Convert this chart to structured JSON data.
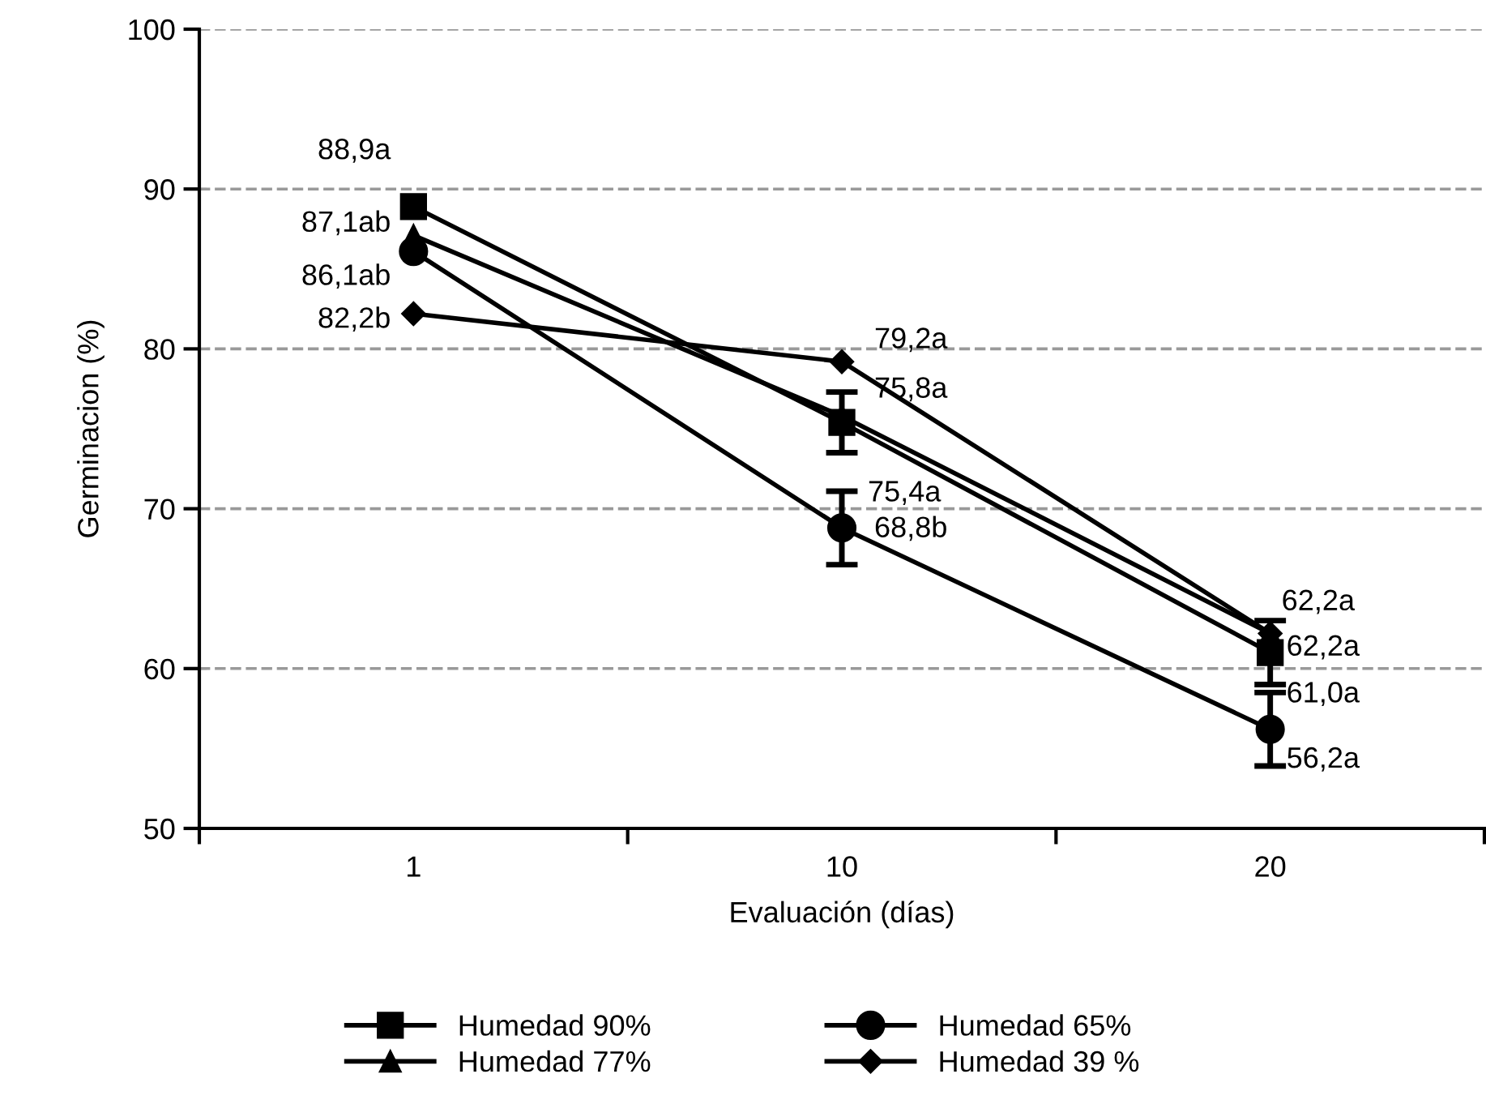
{
  "chart_data": {
    "type": "line",
    "xlabel": "Evaluación (días)",
    "ylabel": "Germinacion (%)",
    "categories": [
      "1",
      "10",
      "20"
    ],
    "ylim": [
      50,
      100
    ],
    "yticks": [
      50,
      60,
      70,
      80,
      90,
      100
    ],
    "grid": "y",
    "legend": "bottom",
    "line_style": "solid",
    "series": [
      {
        "name": "Humedad 90%",
        "color": "#000000",
        "marker": "square",
        "values": [
          88.9,
          75.4,
          61.0
        ],
        "errors": [
          null,
          1.9,
          2.0
        ],
        "value_labels": [
          "88,9a",
          "75,4a",
          "61,0a"
        ]
      },
      {
        "name": "Humedad 77%",
        "color": "#000000",
        "marker": "triangle",
        "values": [
          87.1,
          75.8,
          62.2
        ],
        "value_labels": [
          "87,1ab",
          "75,8a",
          "62,2a"
        ]
      },
      {
        "name": "Humedad 65%",
        "color": "#000000",
        "marker": "circle",
        "values": [
          86.1,
          68.8,
          56.2
        ],
        "errors": [
          null,
          2.3,
          2.3
        ],
        "value_labels": [
          "86,1ab",
          "68,8b",
          "56,2a"
        ]
      },
      {
        "name": "Humedad 39 %",
        "color": "#000000",
        "marker": "diamond",
        "values": [
          82.2,
          79.2,
          62.2
        ],
        "value_labels": [
          "82,2b",
          "79,2a",
          "62,2a"
        ]
      }
    ]
  }
}
